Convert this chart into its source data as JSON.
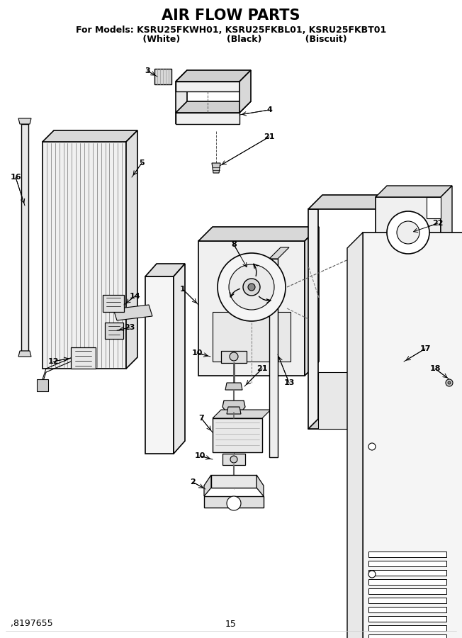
{
  "title": "AIR FLOW PARTS",
  "subtitle_line1": "For Models: KSRU25FKWH01, KSRU25FKBL01, KSRU25FKBT01",
  "subtitle_line2": "           (White)              (Black)              (Biscuit)",
  "footer_left": ",8197655",
  "footer_center": "15",
  "background_color": "#ffffff",
  "title_fontsize": 15,
  "subtitle_fontsize": 9,
  "footer_fontsize": 9
}
